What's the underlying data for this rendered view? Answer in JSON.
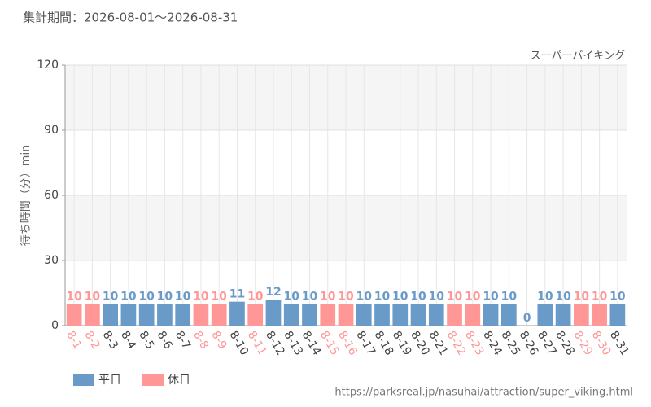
{
  "chart_data": {
    "type": "bar",
    "subtitle": "集計期間：2026-08-01～2026-08-31",
    "annotation": "スーパーバイキング",
    "y_label": "待ち時間（分）min",
    "source": "https://parksreal.jp/nasuhai/attraction/super_viking.html",
    "categories": [
      "8-1",
      "8-2",
      "8-3",
      "8-4",
      "8-5",
      "8-6",
      "8-7",
      "8-8",
      "8-9",
      "8-10",
      "8-11",
      "8-12",
      "8-13",
      "8-14",
      "8-15",
      "8-16",
      "8-17",
      "8-18",
      "8-19",
      "8-20",
      "8-21",
      "8-22",
      "8-23",
      "8-24",
      "8-25",
      "8-26",
      "8-27",
      "8-28",
      "8-29",
      "8-30",
      "8-31"
    ],
    "series": [
      {
        "name": "平日",
        "color": "#6a9bc8",
        "values": [
          null,
          null,
          10,
          10,
          10,
          10,
          10,
          null,
          null,
          11,
          null,
          12,
          10,
          10,
          null,
          null,
          10,
          10,
          10,
          10,
          10,
          null,
          null,
          10,
          10,
          0,
          10,
          10,
          null,
          null,
          10
        ]
      },
      {
        "name": "休日",
        "color": "#ff9797",
        "values": [
          10,
          10,
          null,
          null,
          null,
          null,
          null,
          10,
          10,
          null,
          10,
          null,
          null,
          null,
          10,
          10,
          null,
          null,
          null,
          null,
          null,
          10,
          10,
          null,
          null,
          null,
          null,
          null,
          10,
          10,
          null
        ]
      }
    ],
    "ylim": [
      0,
      120
    ],
    "yticks": [
      0,
      30,
      60,
      90,
      120
    ],
    "grid": true,
    "legend": "bottom-left"
  }
}
